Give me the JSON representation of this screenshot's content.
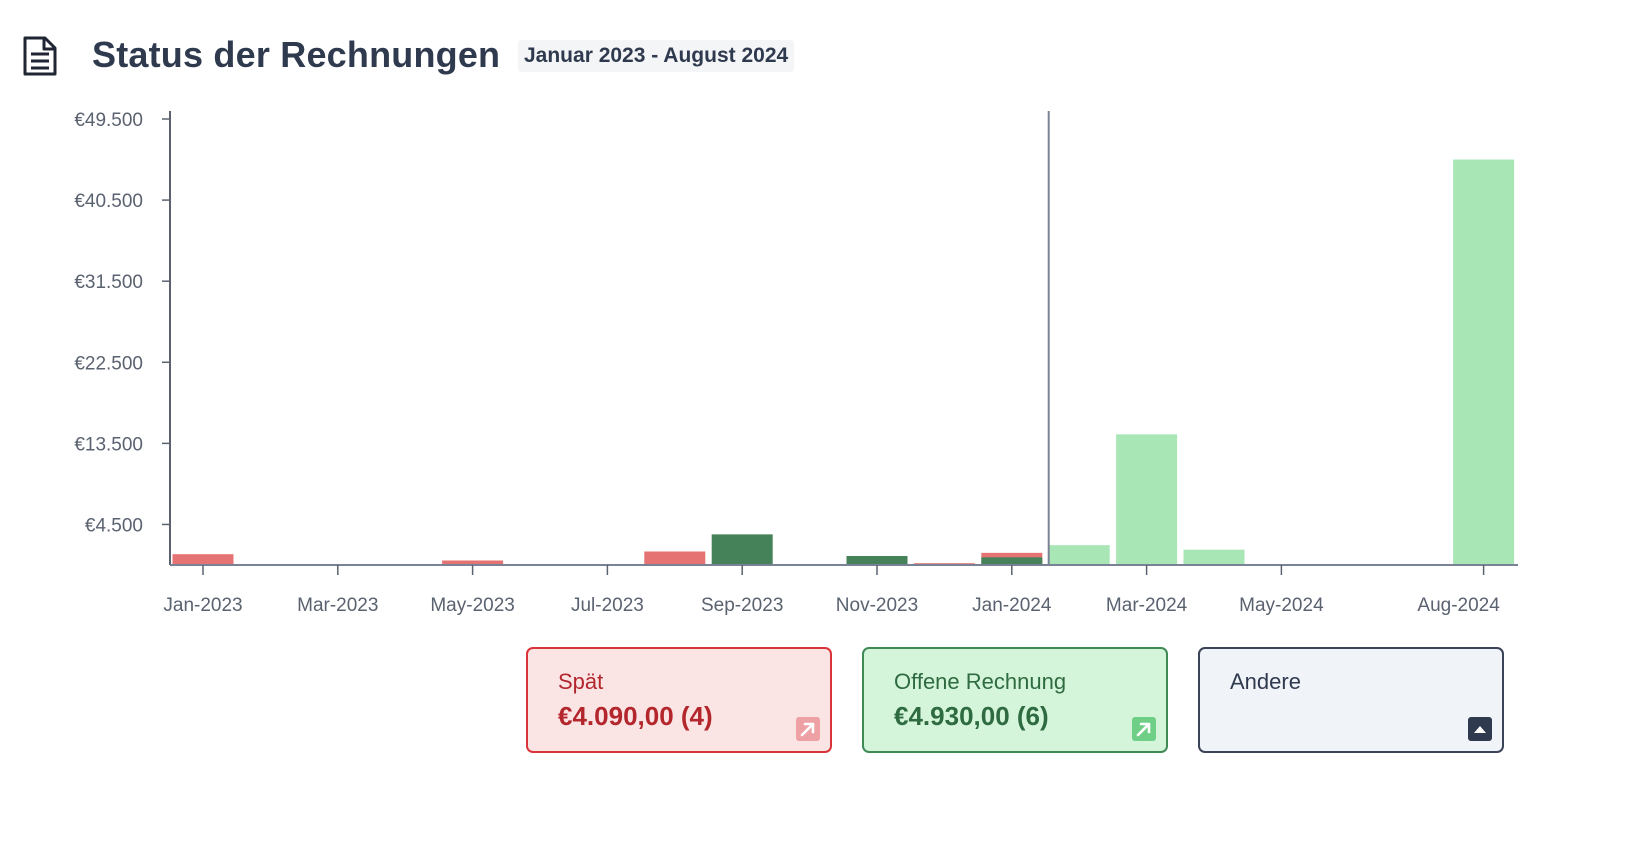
{
  "header": {
    "title": "Status der Rechnungen",
    "date_range": "Januar 2023 - August 2024"
  },
  "chart_data": {
    "type": "bar",
    "title": "",
    "xlabel": "",
    "ylabel": "",
    "ylim": [
      0,
      49500
    ],
    "y_ticks": [
      4500,
      13500,
      22500,
      31500,
      40500,
      49500
    ],
    "y_tick_labels": [
      "€4.500",
      "€13.500",
      "€22.500",
      "€31.500",
      "€40.500",
      "€49.500"
    ],
    "x_tick_labels": [
      "Jan-2023",
      "Mar-2023",
      "May-2023",
      "Jul-2023",
      "Sep-2023",
      "Nov-2023",
      "Jan-2024",
      "Mar-2024",
      "May-2024",
      "Aug-2024"
    ],
    "x_tick_months": [
      "2023-01",
      "2023-03",
      "2023-05",
      "2023-07",
      "2023-09",
      "2023-11",
      "2024-01",
      "2024-03",
      "2024-05",
      "2024-08"
    ],
    "current_month_marker": "2024-02",
    "grid": false,
    "legend": "none",
    "series": [
      {
        "key": "spaet",
        "color": "#e57373",
        "points": [
          {
            "month": "2023-01",
            "value": 1200
          },
          {
            "month": "2023-05",
            "value": 500
          },
          {
            "month": "2023-08",
            "value": 1500
          },
          {
            "month": "2023-12",
            "value": 200
          },
          {
            "month": "2024-01",
            "value": 1350
          }
        ]
      },
      {
        "key": "bezahlt",
        "color": "#468259",
        "points": [
          {
            "month": "2023-09",
            "value": 3400
          },
          {
            "month": "2023-11",
            "value": 1000
          },
          {
            "month": "2024-01",
            "value": 850
          }
        ]
      },
      {
        "key": "offen",
        "color": "#a8e6b6",
        "points": [
          {
            "month": "2024-02",
            "value": 2200
          },
          {
            "month": "2024-03",
            "value": 14500
          },
          {
            "month": "2024-04",
            "value": 1700
          },
          {
            "month": "2024-08",
            "value": 45000
          }
        ]
      }
    ]
  },
  "cards": [
    {
      "label": "Spät",
      "value": "€4.090,00 (4)",
      "icon": "arrow-up-right-icon"
    },
    {
      "label": "Offene Rechnung",
      "value": "€4.930,00 (6)",
      "icon": "arrow-up-right-icon"
    },
    {
      "label": "Andere",
      "value": "",
      "icon": "caret-up-icon"
    }
  ]
}
